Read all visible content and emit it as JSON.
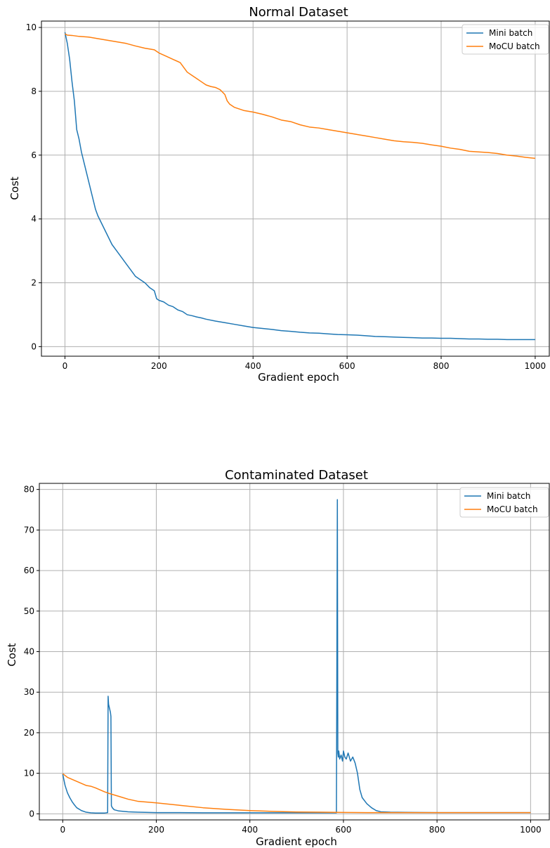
{
  "chart_data": [
    {
      "type": "line",
      "title": "Normal Dataset",
      "xlabel": "Gradient epoch",
      "ylabel": "Cost",
      "xlim": [
        -50,
        1030
      ],
      "ylim": [
        -0.3,
        10.2
      ],
      "xticks": [
        0,
        200,
        400,
        600,
        800,
        1000
      ],
      "xtick_labels": [
        "0",
        "200",
        "400",
        "600",
        "800",
        "1000"
      ],
      "yticks": [
        0,
        2,
        4,
        6,
        8,
        10
      ],
      "ytick_labels": [
        "0",
        "2",
        "4",
        "6",
        "8",
        "10"
      ],
      "grid": true,
      "legend_position": "top-right",
      "series": [
        {
          "name": "Mini batch",
          "color": "#1f77b4",
          "x": [
            0,
            5,
            10,
            15,
            20,
            25,
            30,
            35,
            40,
            45,
            50,
            55,
            60,
            65,
            70,
            80,
            90,
            100,
            110,
            120,
            130,
            140,
            150,
            160,
            170,
            180,
            190,
            195,
            200,
            210,
            220,
            230,
            240,
            250,
            260,
            270,
            280,
            290,
            300,
            320,
            340,
            360,
            380,
            400,
            420,
            440,
            460,
            480,
            500,
            520,
            540,
            560,
            580,
            600,
            620,
            640,
            660,
            680,
            700,
            720,
            740,
            760,
            780,
            800,
            820,
            840,
            860,
            880,
            900,
            920,
            940,
            960,
            980,
            1000
          ],
          "y": [
            9.85,
            9.5,
            9.0,
            8.3,
            7.7,
            6.8,
            6.5,
            6.1,
            5.8,
            5.5,
            5.2,
            4.9,
            4.6,
            4.3,
            4.1,
            3.8,
            3.5,
            3.2,
            3.0,
            2.8,
            2.6,
            2.4,
            2.2,
            2.1,
            2.0,
            1.85,
            1.75,
            1.5,
            1.45,
            1.4,
            1.3,
            1.25,
            1.15,
            1.1,
            1.0,
            0.97,
            0.93,
            0.9,
            0.86,
            0.8,
            0.75,
            0.7,
            0.65,
            0.6,
            0.57,
            0.54,
            0.5,
            0.48,
            0.45,
            0.43,
            0.42,
            0.4,
            0.38,
            0.37,
            0.36,
            0.34,
            0.32,
            0.31,
            0.3,
            0.29,
            0.28,
            0.27,
            0.27,
            0.26,
            0.26,
            0.25,
            0.24,
            0.24,
            0.23,
            0.23,
            0.22,
            0.22,
            0.22,
            0.22
          ]
        },
        {
          "name": "MoCU batch",
          "color": "#ff7f0e",
          "x": [
            0,
            5,
            15,
            30,
            50,
            70,
            90,
            110,
            130,
            150,
            170,
            190,
            200,
            215,
            230,
            245,
            260,
            270,
            280,
            290,
            300,
            310,
            320,
            330,
            340,
            345,
            350,
            360,
            370,
            380,
            400,
            420,
            440,
            460,
            480,
            500,
            520,
            540,
            560,
            580,
            600,
            620,
            640,
            660,
            680,
            700,
            720,
            740,
            760,
            780,
            800,
            820,
            840,
            860,
            880,
            900,
            920,
            940,
            960,
            980,
            1000
          ],
          "y": [
            9.8,
            9.76,
            9.75,
            9.72,
            9.7,
            9.65,
            9.6,
            9.55,
            9.5,
            9.42,
            9.35,
            9.3,
            9.2,
            9.1,
            9.0,
            8.9,
            8.6,
            8.5,
            8.4,
            8.3,
            8.2,
            8.15,
            8.12,
            8.05,
            7.9,
            7.7,
            7.6,
            7.5,
            7.45,
            7.4,
            7.35,
            7.28,
            7.2,
            7.1,
            7.05,
            6.95,
            6.88,
            6.85,
            6.8,
            6.75,
            6.7,
            6.65,
            6.6,
            6.55,
            6.5,
            6.45,
            6.42,
            6.4,
            6.37,
            6.32,
            6.28,
            6.22,
            6.18,
            6.12,
            6.1,
            6.08,
            6.05,
            6.0,
            5.97,
            5.93,
            5.9
          ]
        }
      ]
    },
    {
      "type": "line",
      "title": "Contaminated Dataset",
      "xlabel": "Gradient epoch",
      "ylabel": "Cost",
      "xlim": [
        -50,
        1040
      ],
      "ylim": [
        -1.5,
        81.5
      ],
      "xticks": [
        0,
        200,
        400,
        600,
        800,
        1000
      ],
      "xtick_labels": [
        "0",
        "200",
        "400",
        "600",
        "800",
        "1000"
      ],
      "yticks": [
        0,
        10,
        20,
        30,
        40,
        50,
        60,
        70,
        80
      ],
      "ytick_labels": [
        "0",
        "10",
        "20",
        "30",
        "40",
        "50",
        "60",
        "70",
        "80"
      ],
      "grid": true,
      "legend_position": "top-right",
      "series": [
        {
          "name": "Mini batch",
          "color": "#1f77b4",
          "x": [
            0,
            5,
            10,
            15,
            20,
            25,
            30,
            40,
            50,
            60,
            70,
            80,
            90,
            96,
            97,
            98,
            100,
            102,
            103,
            104,
            106,
            110,
            120,
            140,
            160,
            200,
            250,
            300,
            350,
            400,
            450,
            500,
            550,
            585,
            587,
            588,
            589,
            590,
            592,
            595,
            598,
            600,
            603,
            606,
            610,
            615,
            620,
            625,
            630,
            635,
            640,
            650,
            660,
            670,
            680,
            700,
            750,
            800,
            850,
            900,
            950,
            1000
          ],
          "y": [
            9.8,
            7,
            5.2,
            4,
            3,
            2.2,
            1.5,
            0.8,
            0.4,
            0.25,
            0.2,
            0.2,
            0.2,
            0.3,
            29,
            27,
            26,
            25,
            24,
            2,
            1.5,
            1,
            0.7,
            0.5,
            0.4,
            0.3,
            0.3,
            0.25,
            0.25,
            0.25,
            0.25,
            0.25,
            0.25,
            0.25,
            77.5,
            15,
            14,
            15.5,
            13.5,
            14.5,
            13,
            15.5,
            14,
            13.5,
            15,
            13,
            14,
            12.5,
            10,
            6,
            4,
            2.5,
            1.5,
            0.8,
            0.5,
            0.4,
            0.35,
            0.3,
            0.3,
            0.3,
            0.3,
            0.3
          ]
        },
        {
          "name": "MoCU batch",
          "color": "#ff7f0e",
          "x": [
            0,
            10,
            20,
            30,
            40,
            50,
            60,
            70,
            80,
            90,
            100,
            120,
            140,
            160,
            180,
            200,
            250,
            300,
            350,
            400,
            450,
            500,
            550,
            600,
            650,
            700,
            750,
            800,
            850,
            900,
            950,
            1000
          ],
          "y": [
            9.9,
            9.0,
            8.5,
            8.0,
            7.5,
            7.0,
            6.8,
            6.4,
            5.9,
            5.4,
            5.0,
            4.3,
            3.6,
            3.1,
            2.9,
            2.7,
            2.1,
            1.5,
            1.1,
            0.8,
            0.6,
            0.45,
            0.4,
            0.35,
            0.3,
            0.3,
            0.3,
            0.3,
            0.3,
            0.3,
            0.3,
            0.3
          ]
        }
      ]
    }
  ]
}
